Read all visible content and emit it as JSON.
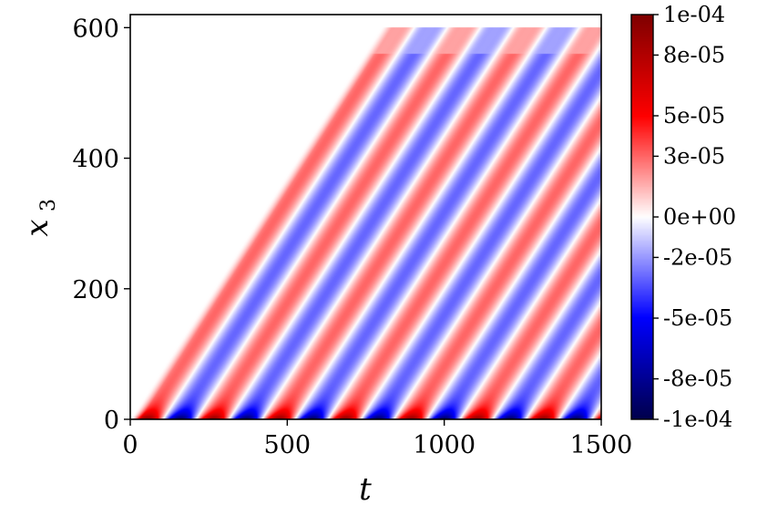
{
  "chart_data": {
    "type": "heatmap",
    "title": "",
    "xlabel": "t",
    "ylabel": {
      "main": "x",
      "sub": "3"
    },
    "xlim": [
      0,
      1500
    ],
    "ylim": [
      0,
      620
    ],
    "x_ticks": [
      {
        "value": 0,
        "label": "0"
      },
      {
        "value": 500,
        "label": "500"
      },
      {
        "value": 1000,
        "label": "1000"
      },
      {
        "value": 1500,
        "label": "1500"
      }
    ],
    "y_ticks": [
      {
        "value": 0,
        "label": "0"
      },
      {
        "value": 200,
        "label": "200"
      },
      {
        "value": 400,
        "label": "400"
      },
      {
        "value": 600,
        "label": "600"
      }
    ],
    "colorbar": {
      "colormap": "seismic",
      "range": [
        -0.0001,
        0.0001
      ],
      "ticks": [
        {
          "value": 0.0001,
          "label": "1e-04"
        },
        {
          "value": 8e-05,
          "label": "8e-05"
        },
        {
          "value": 5e-05,
          "label": "5e-05"
        },
        {
          "value": 3e-05,
          "label": "3e-05"
        },
        {
          "value": 0.0,
          "label": "0e+00"
        },
        {
          "value": -2e-05,
          "label": "-2e-05"
        },
        {
          "value": -5e-05,
          "label": "-5e-05"
        },
        {
          "value": -8e-05,
          "label": "-8e-05"
        },
        {
          "value": -0.0001,
          "label": "-1e-04"
        }
      ]
    },
    "field": {
      "description_values": "wave field emitted at x3=0 with period 210 in t, propagating upward at speed 0.75 (x3 per t), domain x3 from 0 to 600",
      "wave_speed": 0.75,
      "period": 210,
      "first_front_t": 0,
      "x3_max": 600,
      "amplitude_near_source": 0.0001,
      "amplitude_far": 3e-05
    }
  }
}
